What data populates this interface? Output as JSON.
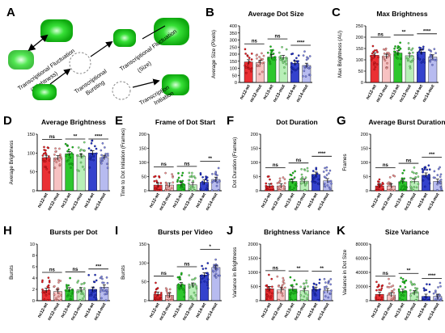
{
  "figure": {
    "panel_a": {
      "letter": "A",
      "labels": [
        "Transcriptional Fluctuation",
        "(Brightness)",
        "Transcriptional",
        "Bursting",
        "Transcriptional Fluctuation",
        "(Size)",
        "Transcription",
        "Initiation"
      ]
    },
    "colors": {
      "nc12-wt": "#e8191e",
      "nc12-mut": "#f0908f",
      "nc13-wt": "#17c117",
      "nc13-mut": "#7ee27c",
      "nc14-wt": "#1e2ec8",
      "nc14-mut": "#7c84e4"
    }
  },
  "chart_data": [
    {
      "letter": "B",
      "type": "bar",
      "title": "Average Dot Size",
      "ylabel": "Average Size (Pixels)",
      "categories": [
        "nc12-wt",
        "nc12-mut",
        "nc13-wt",
        "nc13-mut",
        "nc14-wt",
        "nc14-mut"
      ],
      "values": [
        145,
        140,
        180,
        175,
        135,
        120
      ],
      "ylim": [
        0,
        400
      ],
      "yticks": [
        0,
        50,
        100,
        150,
        200,
        250,
        300,
        350,
        400
      ],
      "significance": [
        {
          "pair": [
            0,
            1
          ],
          "label": "ns"
        },
        {
          "pair": [
            2,
            3
          ],
          "label": "ns"
        },
        {
          "pair": [
            4,
            5
          ],
          "label": "****"
        }
      ]
    },
    {
      "letter": "C",
      "type": "bar",
      "title": "Max Brightness",
      "ylabel": "Max Brightness (AU)",
      "categories": [
        "nc12-wt",
        "nc12-mut",
        "nc13-wt",
        "nc13-mut",
        "nc14-wt",
        "nc14-mut"
      ],
      "values": [
        120,
        115,
        130,
        118,
        135,
        112
      ],
      "ylim": [
        0,
        250
      ],
      "yticks": [
        0,
        50,
        100,
        150,
        200,
        250
      ],
      "significance": [
        {
          "pair": [
            0,
            1
          ],
          "label": "ns"
        },
        {
          "pair": [
            2,
            3
          ],
          "label": "**"
        },
        {
          "pair": [
            4,
            5
          ],
          "label": "****"
        }
      ]
    },
    {
      "letter": "D",
      "type": "bar",
      "title": "Average Brightness",
      "ylabel": "Average Brightness",
      "categories": [
        "nc12-wt",
        "nc12-mut",
        "nc13-wt",
        "nc13-mut",
        "nc14-wt",
        "nc14-mut"
      ],
      "values": [
        88,
        87,
        98,
        92,
        100,
        88
      ],
      "ylim": [
        0,
        150
      ],
      "yticks": [
        0,
        50,
        100,
        150
      ],
      "significance": [
        {
          "pair": [
            0,
            1
          ],
          "label": "ns"
        },
        {
          "pair": [
            2,
            3
          ],
          "label": "**"
        },
        {
          "pair": [
            4,
            5
          ],
          "label": "****"
        }
      ]
    },
    {
      "letter": "E",
      "type": "bar",
      "title": "Frame of Dot Start",
      "ylabel": "Time to Dot Initiation (Frames)",
      "categories": [
        "nc12-wt",
        "nc12-mut",
        "nc13-wt",
        "nc13-mut",
        "nc14-wt",
        "nc14-mut"
      ],
      "values": [
        20,
        20,
        22,
        21,
        30,
        40
      ],
      "ylim": [
        0,
        200
      ],
      "yticks": [
        0,
        50,
        100,
        150,
        200
      ],
      "significance": [
        {
          "pair": [
            0,
            1
          ],
          "label": "ns"
        },
        {
          "pair": [
            2,
            3
          ],
          "label": "ns"
        },
        {
          "pair": [
            4,
            5
          ],
          "label": "**"
        }
      ]
    },
    {
      "letter": "F",
      "type": "bar",
      "title": "Dot Duration",
      "ylabel": "Dot Duration (Frames)",
      "categories": [
        "nc12-wt",
        "nc12-mut",
        "nc13-wt",
        "nc13-mut",
        "nc14-wt",
        "nc14-mut"
      ],
      "values": [
        17,
        17,
        33,
        34,
        58,
        35
      ],
      "ylim": [
        0,
        200
      ],
      "yticks": [
        0,
        50,
        100,
        150,
        200
      ],
      "significance": [
        {
          "pair": [
            0,
            1
          ],
          "label": "ns"
        },
        {
          "pair": [
            2,
            3
          ],
          "label": "ns"
        },
        {
          "pair": [
            4,
            5
          ],
          "label": "****"
        }
      ]
    },
    {
      "letter": "G",
      "type": "bar",
      "title": "Average Burst Duration",
      "ylabel": "Frames",
      "categories": [
        "nc12-wt",
        "nc12-mut",
        "nc13-wt",
        "nc13-mut",
        "nc14-wt",
        "nc14-mut"
      ],
      "values": [
        17,
        17,
        32,
        33,
        55,
        33
      ],
      "ylim": [
        0,
        200
      ],
      "yticks": [
        0,
        50,
        100,
        150,
        200
      ],
      "significance": [
        {
          "pair": [
            0,
            1
          ],
          "label": "ns"
        },
        {
          "pair": [
            2,
            3
          ],
          "label": "ns"
        },
        {
          "pair": [
            4,
            5
          ],
          "label": "***"
        }
      ]
    },
    {
      "letter": "H",
      "type": "bar",
      "title": "Bursts per Dot",
      "ylabel": "Bursts",
      "categories": [
        "nc12-wt",
        "nc12-mut",
        "nc13-wt",
        "nc13-mut",
        "nc14-wt",
        "nc14-mut"
      ],
      "values": [
        1.8,
        1.6,
        1.9,
        1.9,
        2.0,
        2.4
      ],
      "ylim": [
        0,
        10
      ],
      "yticks": [
        0,
        2,
        4,
        6,
        8,
        10
      ],
      "significance": [
        {
          "pair": [
            0,
            1
          ],
          "label": "ns"
        },
        {
          "pair": [
            2,
            3
          ],
          "label": "ns"
        },
        {
          "pair": [
            4,
            5
          ],
          "label": "***"
        }
      ]
    },
    {
      "letter": "I",
      "type": "bar",
      "title": "Bursts per Video",
      "ylabel": "Bursts",
      "categories": [
        "nc12-wt",
        "nc12-mut",
        "nc13-wt",
        "nc13-mut",
        "nc14-wt",
        "nc14-mut"
      ],
      "values": [
        17,
        14,
        42,
        41,
        68,
        88
      ],
      "ylim": [
        0,
        150
      ],
      "yticks": [
        0,
        50,
        100,
        150
      ],
      "significance": [
        {
          "pair": [
            0,
            1
          ],
          "label": "ns"
        },
        {
          "pair": [
            2,
            3
          ],
          "label": "ns"
        },
        {
          "pair": [
            4,
            5
          ],
          "label": "*"
        }
      ]
    },
    {
      "letter": "J",
      "type": "bar",
      "title": "Brightness Variance",
      "ylabel": "Variance in Brightness",
      "categories": [
        "nc12-wt",
        "nc12-mut",
        "nc13-wt",
        "nc13-mut",
        "nc14-wt",
        "nc14-mut"
      ],
      "values": [
        420,
        380,
        410,
        350,
        400,
        350
      ],
      "ylim": [
        0,
        2000
      ],
      "yticks": [
        0,
        500,
        1000,
        1500,
        2000
      ],
      "significance": [
        {
          "pair": [
            0,
            1
          ],
          "label": "ns"
        },
        {
          "pair": [
            2,
            3
          ],
          "label": "**"
        },
        {
          "pair": [
            4,
            5
          ],
          "label": "**"
        }
      ]
    },
    {
      "letter": "K",
      "type": "bar",
      "title": "Size Variance",
      "ylabel": "Variance in Dot Size",
      "categories": [
        "nc12-wt",
        "nc12-mut",
        "nc13-wt",
        "nc13-mut",
        "nc14-wt",
        "nc14-mut"
      ],
      "values": [
        9000,
        8000,
        13000,
        11000,
        6000,
        6000
      ],
      "ylim": [
        0,
        80000
      ],
      "yticks": [
        0,
        20000,
        40000,
        60000,
        80000
      ],
      "significance": [
        {
          "pair": [
            0,
            1
          ],
          "label": "ns"
        },
        {
          "pair": [
            2,
            3
          ],
          "label": "**"
        },
        {
          "pair": [
            4,
            5
          ],
          "label": "****"
        }
      ]
    }
  ]
}
